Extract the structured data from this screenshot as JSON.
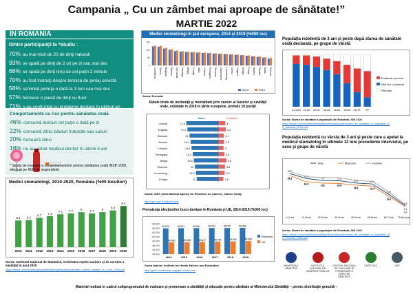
{
  "header": {
    "title": "Campania „ Cu un zâmbet mai aproape de sănătate!”",
    "subtitle": "MARTIE 2022"
  },
  "left": {
    "section_title": "ÎN ROMÂNIA",
    "study_title": "Dintre participanţii la *Studiu :",
    "study_items": [
      {
        "pct": "70%",
        "text": "au  mai mult de 20 de dinţi naturali"
      },
      {
        "pct": "93%",
        "text": "se spală pe dinţi de 2 ori pe zi sau mai des"
      },
      {
        "pct": "68%",
        "text": "se spală pe dinţi timp de cel puţin 2 minute"
      },
      {
        "pct": "70%",
        "text": "au fost instruiţi despre tehnica de periaj corectă"
      },
      {
        "pct": "58%",
        "text": "schimbă periuţa o dată la 3 luni sau mai des"
      },
      {
        "pct": "57%",
        "text": "folosesc o pastă de dinţi cu fluor"
      },
      {
        "pct": "71%",
        "text": "s-au confruntat cu probleme dentare în ultimul an"
      }
    ],
    "risk_title": "Comportamente cu risc pentru sănătatea orală",
    "risk_items": [
      {
        "pct": "46%",
        "text": "consumă dulciuri cel puţin o dată pe zi"
      },
      {
        "pct": "22%",
        "text": "consumă zilnic băuturi îndulcite sau sucuri"
      },
      {
        "pct": "20%",
        "text": "fumează zilnic"
      },
      {
        "pct": "18%",
        "text": "nu au vizitat medicul dentist în ultimii 5 ani"
      }
    ],
    "footnote": "* Studiu de evaluare a comportamentelor privind sănătatea orală INSP, 2020, efectuat pe 4592 de respondenti",
    "source1": "Sursa: Institutul Naţional de Statistică, Activitatea reţelei sanitare şi de ocrotire a  sănătăţii în anul 2020",
    "url1": "https://insse.ro/cms/sites/default/files/field/publicatii/activitatea_retelei_sanitare_in_a nul_2020.pdf"
  },
  "middle": {
    "eu_title": "Medici stomatologi în ţări europene, 2014 şi 2019 (%000 loc)",
    "eu_source": "Sursa: Eurostat",
    "cancer_title": "Ratele brute de incidenţă şi mortalitate prin cancer al buzelor şi cavităţii orale, estimate în 2018 în ţările europene, primele 10 poziţii",
    "cancer_legend_left": "Males",
    "cancer_legend_right": "Females",
    "cancer_source": "Sursa: IARC (International Agency for Research on Cancer), Cancer Today",
    "cancer_url": "http://gco.iarc.fr/today/home",
    "prev_title": "Prevalenţa afecţiunilor buco-dentare în România şi UE, 2014-2019 (%000 loc)",
    "prev_source": "Sursa datelor: Institute for Health Metrics and Evaluation",
    "prev_url": "http://ghdx.healthdata.org/gbd-results-tool"
  },
  "right": {
    "pop_title": "Populaţia rezidentă de 3 ani şi peste după starea de sănătate orală declarată, pe grupe de vârstă",
    "pop_legend": [
      "Problemă, mai dese",
      "Fără nici o problemă",
      "Fără dinţi"
    ],
    "pop_source": "Sursa: Starea de sănătate a populaţiei din România, INS 2021",
    "pop_url": "https://insse.ro/cms/sites/default/files/field/publicatii/starea_de_sanatate_a_populatiei_di n_romania_2019.pdf",
    "visit_title": "Populaţia rezidentă cu vârsta de 3 ani şi peste care a apelat la medicul stomatolog în ultimele 12 luni precedente interviului, pe sexe şi grupe de vârstă",
    "visit_source": "Sursa: Starea de sănătate a populaţiei din România, INS 2021",
    "visit_url": "https://insse.ro/cms/sites/default/files/field/publicatii/starea_de_sanatate_a_populatiei_di n_romania_2019.pdf"
  },
  "logos": [
    {
      "name": "MINISTERUL SĂNĂTĂŢII",
      "color": "#1e3f8a"
    },
    {
      "name": "INSTITUTUL NAŢIONAL DE SĂNĂTATE PUBLICĂ",
      "color": "#b71c1c"
    },
    {
      "name": "CENTRUL NAŢIONAL DE EVALUARE ŞI PROMOVARE A STĂRII DE SĂNĂTATE",
      "color": "#c62828"
    },
    {
      "name": "CNSP 2021",
      "color": "#2e7d32"
    },
    {
      "name": "OSP",
      "color": "#455a64"
    }
  ],
  "footer": "Material realizat în cadrul subprogramului de evaluare şi promovare a sănătăţii şi educaţie pentru sănătate al Ministerului Sănătăţii – pentru distribuţie gratuită –",
  "chart_data": [
    {
      "type": "bar",
      "title": "Medici stomatologi, 2010-2020, România (%00 locuitori)",
      "categories": [
        "2010",
        "2011",
        "2012",
        "2013",
        "2014",
        "2015",
        "2016",
        "2017",
        "2018",
        "2019",
        "2020"
      ],
      "values": [
        6.1,
        6.2,
        6.7,
        7.1,
        7.5,
        7.7,
        8,
        7.7,
        8,
        8.4,
        9.4
      ],
      "ylim": [
        0,
        11
      ]
    },
    {
      "type": "bar",
      "title": "Medici stomatologi în ţări europene, 2014 şi 2019 (%000 loc)",
      "categories": [
        "Liechtenst.",
        "Grecia",
        "Bulgaria",
        "Estonia",
        "Germania",
        "Norvegia",
        "Belgia",
        "Croaţia",
        "Italia",
        "Lituania",
        "Portugalia",
        "Slovenia",
        "Danemarca",
        "Luxemburg",
        "Cehia",
        "Ungaria",
        "Elveţia",
        "Franţa",
        "Austria",
        "Olanda",
        "Malta",
        "Polonia"
      ],
      "series": [
        {
          "name": "2014",
          "values": [
            122,
            120,
            108,
            100,
            92,
            89,
            86,
            84,
            82,
            80,
            78,
            76,
            74,
            72,
            70,
            68,
            65,
            62,
            58,
            55,
            50,
            45
          ],
          "color": "#4472c4"
        },
        {
          "name": "2019",
          "values": [
            126,
            125,
            112,
            104,
            95,
            91,
            88,
            86,
            84,
            82,
            80,
            78,
            76,
            74,
            72,
            70,
            67,
            64,
            60,
            57,
            52,
            47
          ],
          "color": "#ed7d31"
        }
      ],
      "ylim": [
        0,
        150
      ]
    },
    {
      "type": "bar",
      "title": "Ratele brute de incidenţă şi mortalitate prin cancer al buzelor şi cavităţii orale",
      "categories": [
        "Letonia",
        "Ungaria",
        "Slovacia",
        "Estonia",
        "Lituania",
        "Portugalia",
        "Belgia",
        "Slovenia",
        "Luxemburg",
        "Croaţia"
      ],
      "series": [
        {
          "name": "Males",
          "values": [
            17.8,
            17.2,
            16.0,
            15.4,
            14.9,
            14.2,
            13.6,
            13.0,
            12.4,
            12.0
          ],
          "color": "#2e75b6"
        },
        {
          "name": "Females",
          "values": [
            4.0,
            4.2,
            3.1,
            3.3,
            3.0,
            3.5,
            4.6,
            3.8,
            3.6,
            2.9
          ],
          "color": "#e06666"
        }
      ]
    },
    {
      "type": "bar",
      "title": "Prevalenţa afecţiunilor buco-dentare în România şi UE, 2014-2019 (%000 loc)",
      "categories": [
        "2014",
        "2015",
        "2016",
        "2017",
        "2018",
        "2019"
      ],
      "series": [
        {
          "name": "Romania",
          "values": [
            55870,
            55941,
            55984,
            56024,
            56025,
            56088
          ],
          "color": "#2e75b6"
        },
        {
          "name": "UE",
          "values": [
            49460,
            49558,
            49627,
            49765,
            49815,
            49968
          ],
          "color": "#ed7d31"
        }
      ],
      "ylim": [
        44000,
        58000
      ]
    },
    {
      "type": "bar",
      "title": "Populaţia rezidentă de 3 ani şi peste după starea de sănătate orală declarată",
      "categories": [
        "3-14 ani",
        "15-24",
        "25-34",
        "35-44",
        "45-54",
        "55-64",
        "65-74",
        "75+"
      ],
      "series": [
        {
          "name": "Problemă, mai dese",
          "values": [
            16,
            18,
            20,
            22,
            25,
            35,
            45,
            50
          ],
          "color": "#e53935"
        },
        {
          "name": "Fără nici o problemă",
          "values": [
            82,
            80,
            76,
            70,
            62,
            45,
            28,
            18
          ],
          "color": "#1565c0"
        },
        {
          "name": "Fără dinţi",
          "values": [
            2,
            2,
            4,
            8,
            13,
            20,
            27,
            32
          ],
          "color": "#ffffff"
        }
      ]
    },
    {
      "type": "line",
      "title": "Populaţia rezidentă care a apelat la medicul stomatolog în ultimele 12 luni",
      "categories": [
        "3-14 ani",
        "15-24 ani",
        "25-34 ani",
        "35-44 ani",
        "45-54 ani",
        "55-64 ani",
        "65-74 ani",
        "75 ani şi peste"
      ],
      "series": [
        {
          "name": "Total",
          "values": [
            26.7,
            23.3,
            22.0,
            21.8,
            20.3,
            19.6,
            12.5,
            4.8
          ],
          "color": "#1f4e79"
        },
        {
          "name": "Masculin",
          "values": [
            25.4,
            21.1,
            20.2,
            19.9,
            18.8,
            18.1,
            11.2,
            4.2
          ],
          "color": "#ed7d31"
        },
        {
          "name": "Feminin",
          "values": [
            28.1,
            24.5,
            24.0,
            23.8,
            21.9,
            21.4,
            14.1,
            5.4
          ],
          "color": "#a5a5a5"
        }
      ],
      "legend": "top",
      "ylim": [
        0,
        30
      ]
    }
  ]
}
